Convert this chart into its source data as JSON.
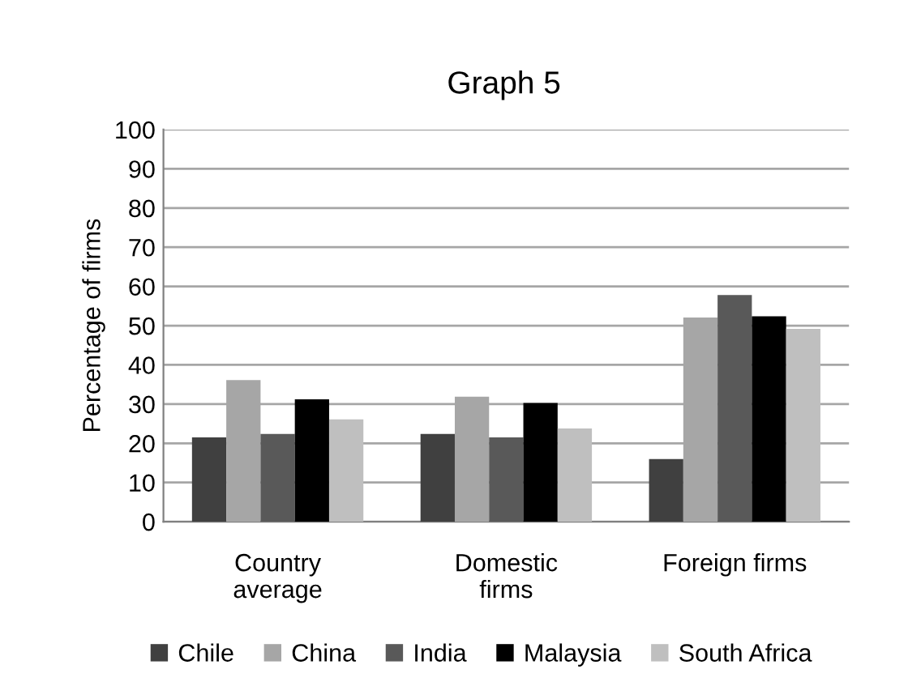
{
  "chart_data": {
    "type": "bar",
    "title": "Graph 5",
    "ylabel": "Percentage of firms",
    "categories": [
      "Country\naverage",
      "Domestic\nfirms",
      "Foreign firms"
    ],
    "series": [
      {
        "name": "Chile",
        "color": "#404040",
        "values": [
          21.5,
          22.4,
          16
        ]
      },
      {
        "name": "China",
        "color": "#a6a6a6",
        "values": [
          36.1,
          31.9,
          52.1
        ]
      },
      {
        "name": "India",
        "color": "#595959",
        "values": [
          22.4,
          21.5,
          57.8
        ]
      },
      {
        "name": "Malaysia",
        "color": "#000000",
        "values": [
          31.2,
          30.3,
          52.4
        ]
      },
      {
        "name": "South Africa",
        "color": "#bfbfbf",
        "values": [
          26.1,
          23.8,
          49.2
        ]
      }
    ],
    "ylim": [
      0,
      100
    ],
    "yticks": [
      0,
      10,
      20,
      30,
      40,
      50,
      60,
      70,
      80,
      90,
      100
    ],
    "grid": "y",
    "legend": "bottom"
  }
}
